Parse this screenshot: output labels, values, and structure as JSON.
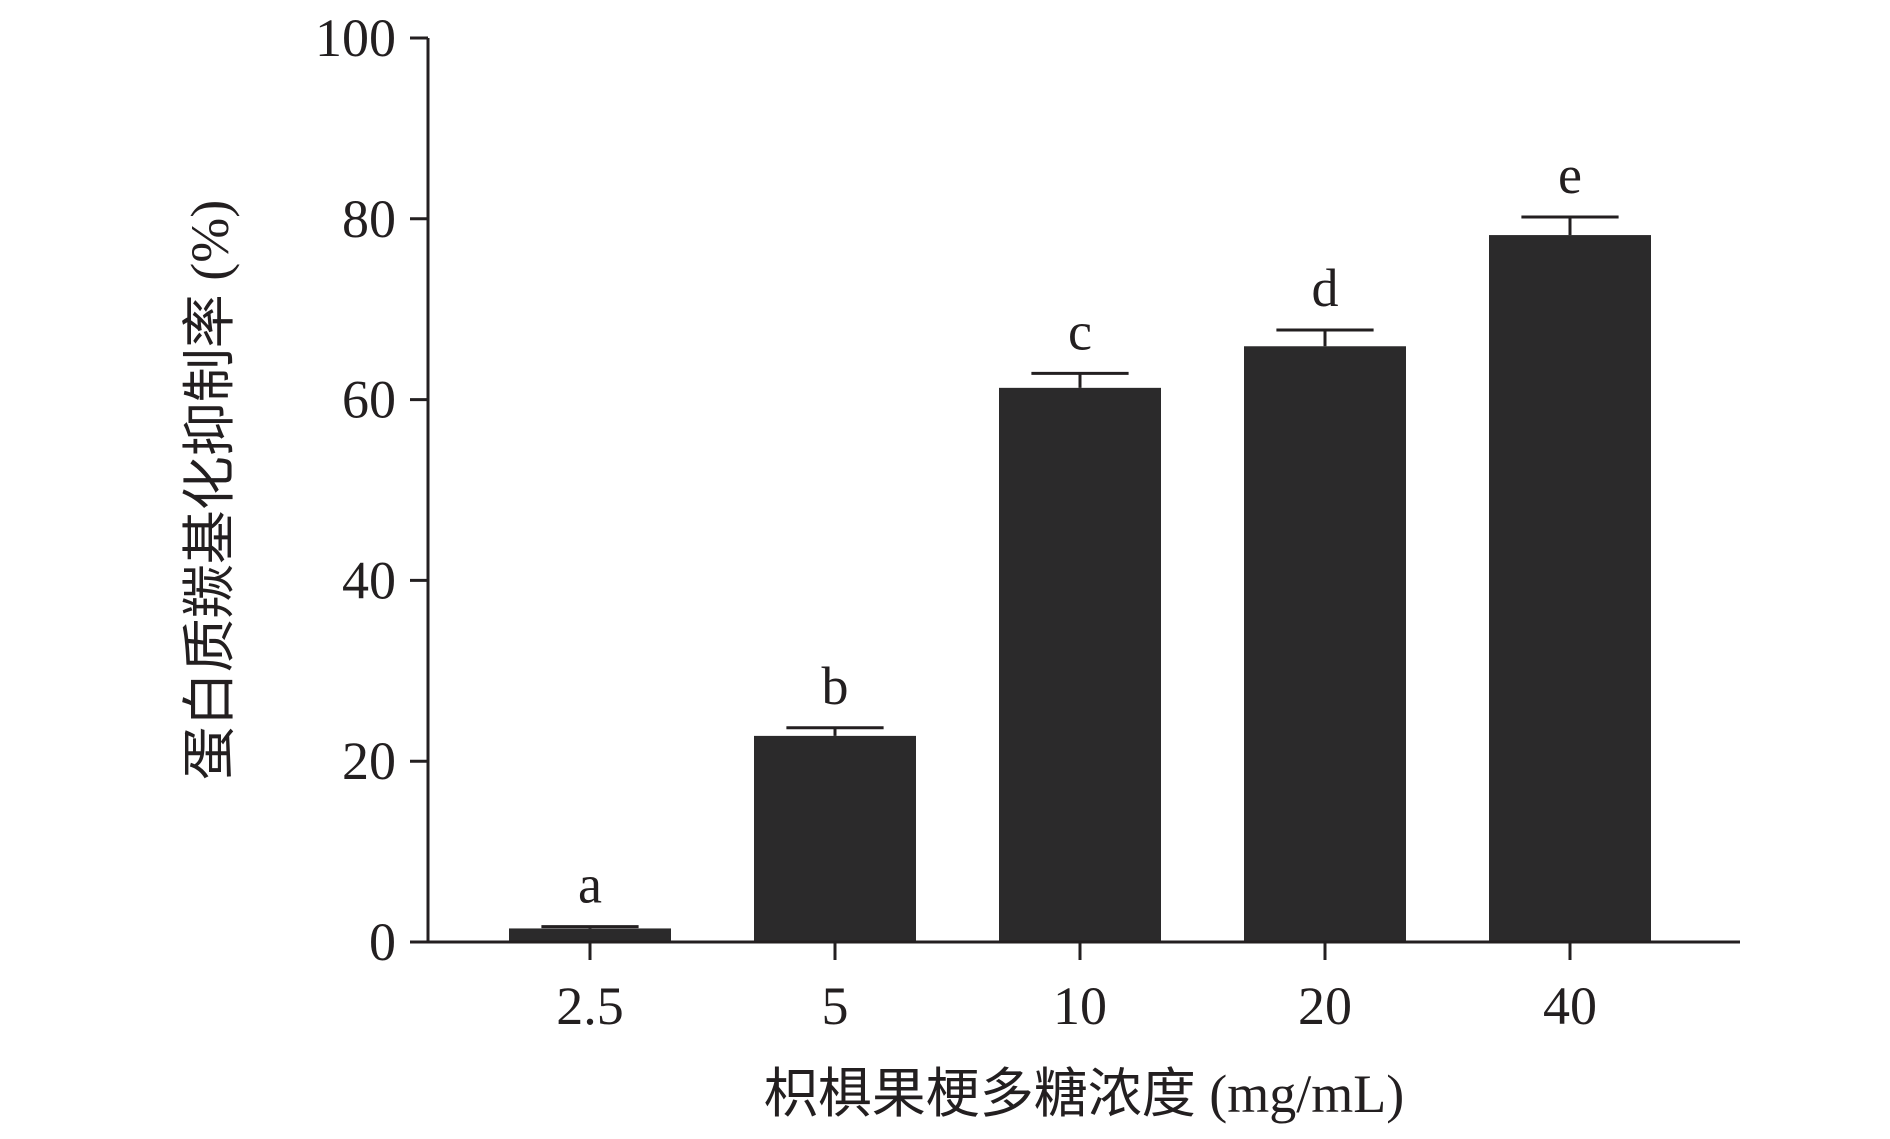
{
  "chart_data": {
    "type": "bar",
    "title": "",
    "xlabel": "枳椇果梗多糖浓度 (mg/mL)",
    "ylabel": "蛋白质羰基化抑制率 (%)",
    "categories": [
      "2.5",
      "5",
      "10",
      "20",
      "40"
    ],
    "values": [
      1.5,
      22.8,
      61.3,
      65.9,
      78.2
    ],
    "errors": [
      0.2,
      0.9,
      1.6,
      1.8,
      2.0
    ],
    "significance_labels": [
      "a",
      "b",
      "c",
      "d",
      "e"
    ],
    "ylim": [
      0,
      100
    ],
    "yticks": [
      "0",
      "20",
      "40",
      "60",
      "80",
      "100"
    ],
    "ytick_values": [
      0,
      20,
      40,
      60,
      80,
      100
    ],
    "grid": false,
    "legend": "none",
    "colors": {
      "bar": "#2b2a2b",
      "axis": "#231f20",
      "text": "#231f20"
    }
  }
}
